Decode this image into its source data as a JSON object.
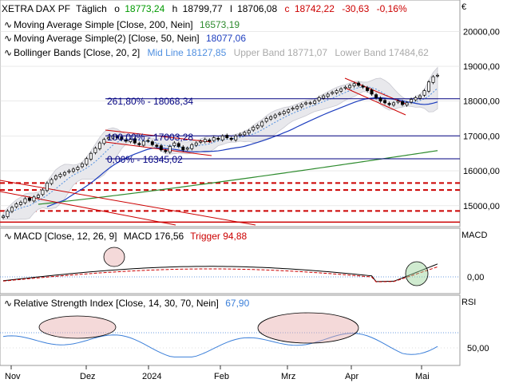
{
  "header": {
    "symbol": "XETRA DAX PF",
    "interval": "Täglich",
    "o_label": "o",
    "o_value": "18773,24",
    "h_label": "h",
    "h_value": "18799,77",
    "l_label": "l",
    "l_value": "18706,08",
    "c_label": "c",
    "c_value": "18742,22",
    "change": "-30,63",
    "change_pct": "-0,16%",
    "currency": "€"
  },
  "indicators": {
    "ma200_label": "Moving Average Simple [Close, 200, Nein]",
    "ma200_value": "16573,19",
    "ma50_label": "Moving Average Simple(2) [Close, 50, Nein]",
    "ma50_value": "18077,06",
    "bb_label": "Bollinger Bands [Close, 20, 2]",
    "bb_mid": "Mid Line 18127,85",
    "bb_upper": "Upper Band 18771,07",
    "bb_lower": "Lower Band 17484,62"
  },
  "annotations": {
    "fib_261": "261,80% - 18068,34",
    "fib_100": "100,00% - 17003,28",
    "fib_0": "0,00% - 16345,02"
  },
  "macd": {
    "label": "MACD [Close, 12, 26, 9]",
    "value_text": "MACD 176,56",
    "trigger_text": "Trigger 94,88",
    "axis_title": "MACD",
    "tick": "0,00"
  },
  "rsi": {
    "label": "Relative Strength Index [Close, 14, 30, 70, Nein]",
    "value": "67,90",
    "axis_title": "RSI",
    "tick": "50,00"
  },
  "colors": {
    "ma200": "#2e8b2e",
    "ma50": "#1f3fbf",
    "bb_mid": "#4f8fe0",
    "bb_fill": "#e6e6ea",
    "macd_line": "#000000",
    "macd_trigger": "#cc0000",
    "rsi_line": "#3b7fd9",
    "negative": "#cc0000",
    "positive": "#009900",
    "resistance": "#cc0000",
    "fib": "#000080"
  },
  "chart_data": {
    "type": "candlestick",
    "x_ticks": [
      "Nov",
      "Dez",
      "2024",
      "Feb",
      "Mrz",
      "Apr",
      "Mai"
    ],
    "price_ticks": [
      15000,
      16000,
      17000,
      18000,
      19000,
      20000
    ],
    "price_tick_labels": [
      "15000,00",
      "16000,00",
      "17000,00",
      "18000,00",
      "19000,00",
      "20000,00"
    ],
    "price_range": [
      14400,
      20900
    ],
    "close": [
      14700,
      14850,
      14950,
      15050,
      15100,
      15200,
      15150,
      15250,
      15300,
      15450,
      15650,
      15750,
      15850,
      15900,
      15950,
      16000,
      16050,
      16100,
      16200,
      16350,
      16500,
      16650,
      16800,
      16900,
      16950,
      17000,
      16950,
      16900,
      16850,
      16900,
      16800,
      16750,
      16850,
      16850,
      16750,
      16700,
      16600,
      16550,
      16700,
      16800,
      16700,
      16600,
      16650,
      16750,
      16800,
      16850,
      16900,
      16850,
      16950,
      16900,
      17000,
      16950,
      16900,
      17000,
      17050,
      17100,
      17150,
      17250,
      17300,
      17400,
      17500,
      17550,
      17600,
      17650,
      17700,
      17750,
      17800,
      17850,
      17900,
      17950,
      17950,
      18000,
      18100,
      18150,
      18200,
      18250,
      18300,
      18350,
      18400,
      18450,
      18500,
      18450,
      18400,
      18300,
      18200,
      18100,
      18000,
      17950,
      17900,
      17950,
      18000,
      17900,
      17950,
      18050,
      18100,
      18150,
      18300,
      18550,
      18700,
      18742
    ],
    "ma200": [
      14950,
      16580
    ],
    "ma50": [
      15000,
      18080
    ],
    "bollinger": {
      "mid": 18127.85,
      "upper": 18771.07,
      "lower": 17484.62
    },
    "horizontal_levels": [
      {
        "value": 18068.34,
        "label": "261,80% - 18068,34"
      },
      {
        "value": 17003.28,
        "label": "100,00% - 17003,28"
      },
      {
        "value": 16345.02,
        "label": "0,00% - 16345,02"
      }
    ],
    "resistance_levels_dashed": [
      15650,
      15450,
      14850
    ],
    "support_level_solid": 14530,
    "macd_last": 176.56,
    "macd_trigger_last": 94.88,
    "rsi_last": 67.9,
    "rsi_level": 70
  }
}
